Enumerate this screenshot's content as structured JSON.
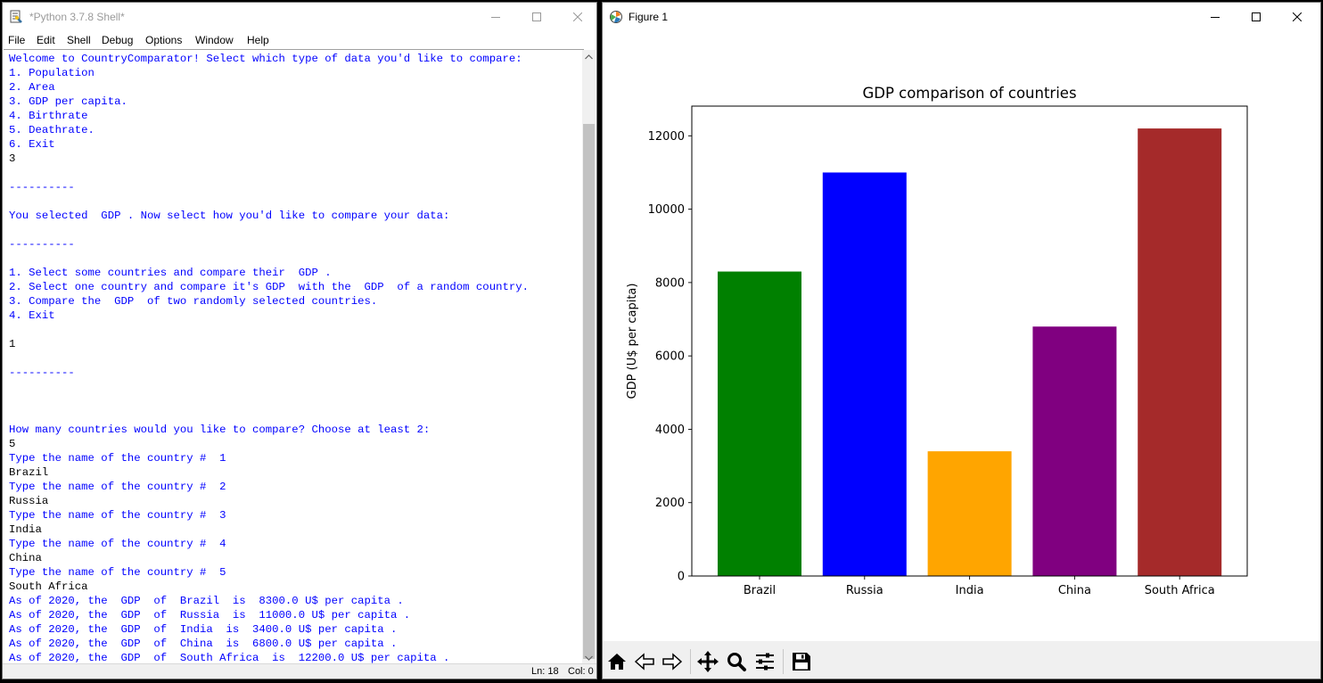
{
  "shell": {
    "title": "*Python 3.7.8 Shell*",
    "menu": [
      "File",
      "Edit",
      "Shell",
      "Debug",
      "Options",
      "Window",
      "Help"
    ],
    "lines": [
      {
        "text": "Welcome to CountryComparator! Select which type of data you'd like to compare:",
        "kind": "out"
      },
      {
        "text": "1. Population",
        "kind": "out"
      },
      {
        "text": "2. Area",
        "kind": "out"
      },
      {
        "text": "3. GDP per capita.",
        "kind": "out"
      },
      {
        "text": "4. Birthrate",
        "kind": "out"
      },
      {
        "text": "5. Deathrate.",
        "kind": "out"
      },
      {
        "text": "6. Exit",
        "kind": "out"
      },
      {
        "text": "3",
        "kind": "inp"
      },
      {
        "text": "",
        "kind": "out"
      },
      {
        "text": "----------",
        "kind": "out"
      },
      {
        "text": "",
        "kind": "out"
      },
      {
        "text": "You selected  GDP . Now select how you'd like to compare your data:",
        "kind": "out"
      },
      {
        "text": "",
        "kind": "out"
      },
      {
        "text": "----------",
        "kind": "out"
      },
      {
        "text": "",
        "kind": "out"
      },
      {
        "text": "1. Select some countries and compare their  GDP .",
        "kind": "out"
      },
      {
        "text": "2. Select one country and compare it's GDP  with the  GDP  of a random country.",
        "kind": "out"
      },
      {
        "text": "3. Compare the  GDP  of two randomly selected countries.",
        "kind": "out"
      },
      {
        "text": "4. Exit",
        "kind": "out"
      },
      {
        "text": "",
        "kind": "out"
      },
      {
        "text": "1",
        "kind": "inp"
      },
      {
        "text": "",
        "kind": "out"
      },
      {
        "text": "----------",
        "kind": "out"
      },
      {
        "text": "",
        "kind": "out"
      },
      {
        "text": "",
        "kind": "out"
      },
      {
        "text": "",
        "kind": "out"
      },
      {
        "text": "How many countries would you like to compare? Choose at least 2:",
        "kind": "out"
      },
      {
        "text": "5",
        "kind": "inp"
      },
      {
        "text": "Type the name of the country #  1",
        "kind": "out"
      },
      {
        "text": "Brazil",
        "kind": "inp"
      },
      {
        "text": "Type the name of the country #  2",
        "kind": "out"
      },
      {
        "text": "Russia",
        "kind": "inp"
      },
      {
        "text": "Type the name of the country #  3",
        "kind": "out"
      },
      {
        "text": "India",
        "kind": "inp"
      },
      {
        "text": "Type the name of the country #  4",
        "kind": "out"
      },
      {
        "text": "China",
        "kind": "inp"
      },
      {
        "text": "Type the name of the country #  5",
        "kind": "out"
      },
      {
        "text": "South Africa",
        "kind": "inp"
      },
      {
        "text": "As of 2020, the  GDP  of  Brazil  is  8300.0 U$ per capita .",
        "kind": "out"
      },
      {
        "text": "As of 2020, the  GDP  of  Russia  is  11000.0 U$ per capita .",
        "kind": "out"
      },
      {
        "text": "As of 2020, the  GDP  of  India  is  3400.0 U$ per capita .",
        "kind": "out"
      },
      {
        "text": "As of 2020, the  GDP  of  China  is  6800.0 U$ per capita .",
        "kind": "out"
      },
      {
        "text": "As of 2020, the  GDP  of  South Africa  is  12200.0 U$ per capita .",
        "kind": "out"
      }
    ],
    "status": {
      "line": "Ln: 18",
      "col": "Col: 0"
    },
    "colors": {
      "output": "#0000ff",
      "input": "#000000"
    }
  },
  "figure": {
    "title": "Figure 1",
    "toolbar": [
      "home-icon",
      "back-icon",
      "forward-icon",
      "pan-icon",
      "zoom-icon",
      "configure-subplots-icon",
      "save-icon"
    ]
  },
  "chart_data": {
    "type": "bar",
    "title": "GDP comparison of countries",
    "xlabel": "",
    "ylabel": "GDP (U$ per capita)",
    "categories": [
      "Brazil",
      "Russia",
      "India",
      "China",
      "South Africa"
    ],
    "values": [
      8300,
      11000,
      3400,
      6800,
      12200
    ],
    "colors": [
      "#008000",
      "#0000ff",
      "#ffa500",
      "#800080",
      "#a52a2a"
    ],
    "yticks": [
      0,
      2000,
      4000,
      6000,
      8000,
      10000,
      12000
    ],
    "ylim": [
      0,
      12810
    ],
    "grid": false
  }
}
